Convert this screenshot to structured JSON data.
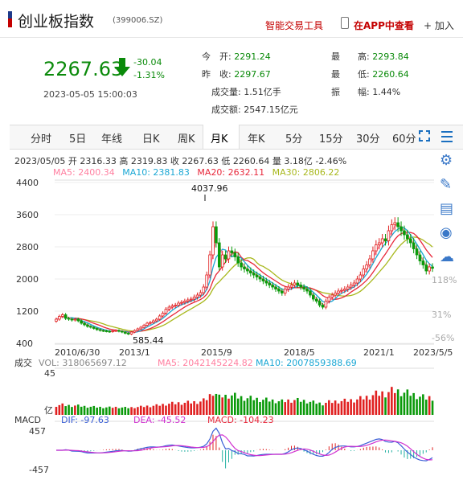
{
  "header": {
    "name": "创业板指数",
    "code": "(399006.SZ)",
    "tool_smart": "智能交易工具",
    "tool_app": "在APP中查看",
    "tool_add": "+ 加入"
  },
  "quote": {
    "price": "2267.63",
    "change": "-30.04",
    "change_pct": "-1.31%",
    "time": "2023-05-05 15:00:03",
    "open_label": "今　开:",
    "open": "2291.24",
    "prev_label": "昨　收:",
    "prev": "2297.67",
    "vol_label": "成交量:",
    "vol": "1.51亿手",
    "amt_label": "成交额:",
    "amt": "2547.15亿元",
    "high_label": "最　　高:",
    "high": "2293.84",
    "low_label": "最　　低:",
    "low": "2260.64",
    "amp_label": "振　　幅:",
    "amp": "1.44%"
  },
  "tabs": [
    "分时",
    "5日",
    "年线",
    "日K",
    "周K",
    "月K",
    "年K",
    "5分",
    "15分",
    "30分",
    "60分"
  ],
  "active_tab": "月K",
  "legend": {
    "bar_info_date": "2023/05/05",
    "open": "开 2316.33",
    "high": "高 2319.83",
    "close": "收 2267.63",
    "low": "低 2260.64",
    "volume": "量 3.18亿",
    "pct": "-2.46%",
    "ma5": "MA5: 2400.34",
    "ma10": "MA10: 2381.83",
    "ma20": "MA20: 2632.11",
    "ma30": "MA30: 2806.22"
  },
  "colors": {
    "up": "#e02020",
    "down": "#0a9a0a",
    "ma5": "#ff7fa0",
    "ma10": "#1aa7d4",
    "ma20": "#e8273a",
    "ma30": "#a8b81c"
  },
  "icons": [
    "gear-icon",
    "pencil-icon",
    "report-icon",
    "weibo-icon",
    "chat-icon"
  ],
  "chart_data": {
    "type": "candlestick",
    "price_axis": {
      "ticks": [
        400,
        1200,
        2000,
        2800,
        3600,
        4400
      ],
      "ylim": [
        380,
        4460
      ]
    },
    "pct_axis_labels": [
      "118%",
      "31%",
      "-56%"
    ],
    "x_tick_labels": [
      "2010/6/30",
      "2013/1",
      "2015/9",
      "2018/5",
      "2021/1",
      "2023/5/5"
    ],
    "annotations": {
      "max": "4037.96",
      "min": "585.44"
    },
    "close_series": [
      1000,
      1070,
      1110,
      1020,
      1000,
      980,
      1000,
      960,
      900,
      860,
      820,
      800,
      770,
      740,
      720,
      710,
      700,
      690,
      710,
      720,
      700,
      680,
      650,
      630,
      680,
      720,
      760,
      800,
      850,
      900,
      920,
      960,
      1000,
      1080,
      1150,
      1250,
      1300,
      1330,
      1350,
      1400,
      1420,
      1450,
      1480,
      1500,
      1550,
      1600,
      1660,
      1800,
      2100,
      2600,
      3300,
      2900,
      2300,
      2600,
      2500,
      2700,
      2650,
      2550,
      2400,
      2300,
      2250,
      2200,
      2150,
      2100,
      2050,
      2000,
      1950,
      1900,
      1850,
      1800,
      1750,
      1700,
      1650,
      1750,
      1800,
      1850,
      1900,
      1850,
      1800,
      1750,
      1700,
      1600,
      1500,
      1450,
      1350,
      1300,
      1450,
      1550,
      1600,
      1650,
      1700,
      1720,
      1750,
      1800,
      1850,
      1900,
      2000,
      2100,
      2250,
      2350,
      2500,
      2700,
      2850,
      2900,
      3000,
      2950,
      3200,
      3350,
      3400,
      3300,
      3200,
      3100,
      3000,
      2900,
      2750,
      2600,
      2450,
      2350,
      2200,
      2300,
      2267.63
    ],
    "open_series": [
      950,
      1000,
      1070,
      1110,
      1020,
      1000,
      980,
      1000,
      960,
      900,
      860,
      820,
      800,
      770,
      740,
      720,
      710,
      700,
      690,
      710,
      720,
      700,
      680,
      650,
      630,
      680,
      720,
      760,
      800,
      850,
      900,
      920,
      960,
      1000,
      1080,
      1150,
      1250,
      1300,
      1330,
      1350,
      1400,
      1420,
      1450,
      1480,
      1500,
      1550,
      1600,
      1660,
      1800,
      2100,
      2600,
      3300,
      2900,
      2300,
      2600,
      2500,
      2700,
      2650,
      2550,
      2400,
      2300,
      2250,
      2200,
      2150,
      2100,
      2050,
      2000,
      1950,
      1900,
      1850,
      1800,
      1750,
      1700,
      1650,
      1750,
      1800,
      1850,
      1900,
      1850,
      1800,
      1750,
      1700,
      1600,
      1500,
      1450,
      1350,
      1300,
      1450,
      1550,
      1600,
      1650,
      1700,
      1720,
      1750,
      1800,
      1850,
      1900,
      2000,
      2100,
      2250,
      2350,
      2500,
      2700,
      2850,
      2900,
      3000,
      2950,
      3200,
      3350,
      3400,
      3300,
      3200,
      3100,
      3000,
      2900,
      2750,
      2600,
      2450,
      2350,
      2200,
      2300,
      2316.33
    ],
    "volume": {
      "label_left": "成交",
      "label_bottom": "亿",
      "y_top_label": "45",
      "vol": "VOL: 318065697.12",
      "ma5": "MA5: 2042145224.82",
      "ma10": "MA10: 2007859388.69"
    },
    "macd": {
      "label": "MACD",
      "dif": "DIF: -97.63",
      "dea": "DEA: -45.52",
      "macd": "MACD: -104.23",
      "top": "457",
      "bottom": "-457"
    }
  }
}
